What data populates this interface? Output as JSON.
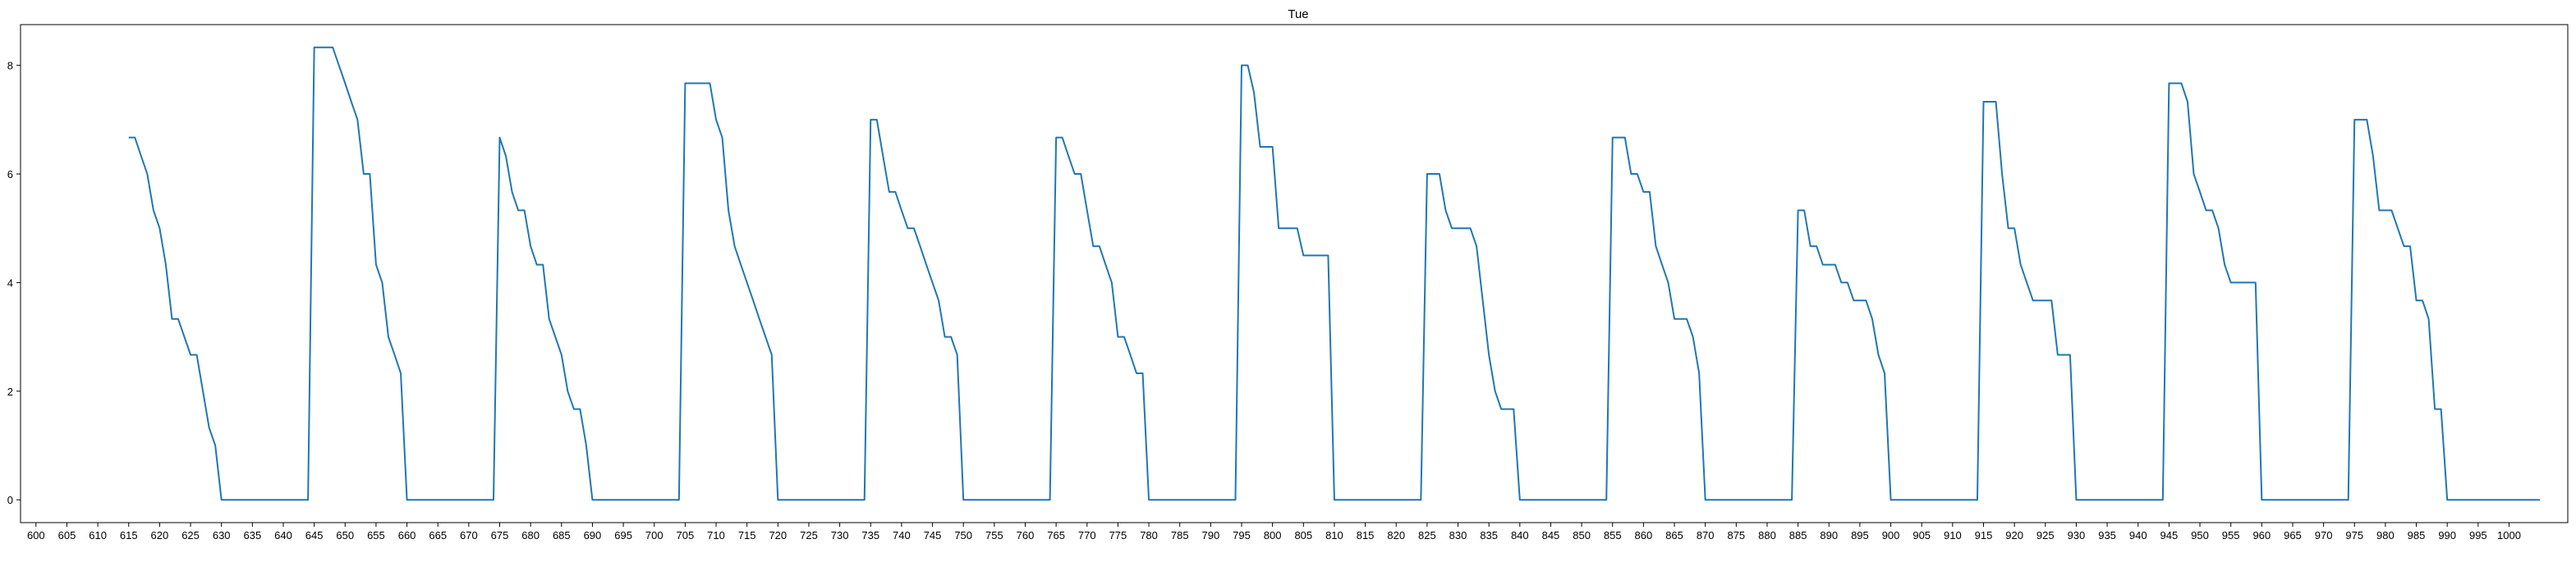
{
  "chart_data": {
    "type": "line",
    "title": "Tue",
    "xlabel": "",
    "ylabel": "",
    "xlim": [
      597.5,
      1009.5
    ],
    "ylim": [
      -0.42,
      8.75
    ],
    "x_ticks": [
      600,
      605,
      610,
      615,
      620,
      625,
      630,
      635,
      640,
      645,
      650,
      655,
      660,
      665,
      670,
      675,
      680,
      685,
      690,
      695,
      700,
      705,
      710,
      715,
      720,
      725,
      730,
      735,
      740,
      745,
      750,
      755,
      760,
      765,
      770,
      775,
      780,
      785,
      790,
      795,
      800,
      805,
      810,
      815,
      820,
      825,
      830,
      835,
      840,
      845,
      850,
      855,
      860,
      865,
      870,
      875,
      880,
      885,
      890,
      895,
      900,
      905,
      910,
      915,
      920,
      925,
      930,
      935,
      940,
      945,
      950,
      955,
      960,
      965,
      970,
      975,
      980,
      985,
      990,
      995,
      1000
    ],
    "y_ticks": [
      0,
      2,
      4,
      6,
      8
    ],
    "grid": false,
    "legend": "none",
    "series": [
      {
        "color": "#1f77b4",
        "x": [
          615,
          616,
          617,
          618,
          619,
          620,
          621,
          622,
          623,
          624,
          625,
          626,
          627,
          628,
          629,
          630,
          644,
          645,
          646,
          647,
          648,
          649,
          650,
          651,
          652,
          653,
          654,
          655,
          656,
          657,
          658,
          659,
          660,
          674,
          675,
          676,
          677,
          678,
          679,
          680,
          681,
          682,
          683,
          684,
          685,
          686,
          687,
          688,
          689,
          690,
          704,
          705,
          706,
          707,
          708,
          709,
          710,
          711,
          712,
          713,
          714,
          715,
          716,
          717,
          718,
          719,
          720,
          734,
          735,
          736,
          737,
          738,
          739,
          740,
          741,
          742,
          743,
          744,
          745,
          746,
          747,
          748,
          749,
          750,
          764,
          765,
          766,
          767,
          768,
          769,
          770,
          771,
          772,
          773,
          774,
          775,
          776,
          777,
          778,
          779,
          780,
          794,
          795,
          796,
          797,
          798,
          799,
          800,
          801,
          802,
          803,
          804,
          805,
          806,
          807,
          808,
          809,
          810,
          824,
          825,
          826,
          827,
          828,
          829,
          830,
          831,
          832,
          833,
          834,
          835,
          836,
          837,
          838,
          839,
          840,
          854,
          855,
          856,
          857,
          858,
          859,
          860,
          861,
          862,
          863,
          864,
          865,
          866,
          867,
          868,
          869,
          870,
          884,
          885,
          886,
          887,
          888,
          889,
          890,
          891,
          892,
          893,
          894,
          895,
          896,
          897,
          898,
          899,
          900,
          914,
          915,
          916,
          917,
          918,
          919,
          920,
          921,
          922,
          923,
          924,
          925,
          926,
          927,
          928,
          929,
          930,
          944,
          945,
          946,
          947,
          948,
          949,
          950,
          951,
          952,
          953,
          954,
          955,
          956,
          957,
          958,
          959,
          960,
          974,
          975,
          976,
          977,
          978,
          979,
          980,
          981,
          982,
          983,
          984,
          985,
          986,
          987,
          988,
          989,
          990,
          1005
        ],
        "y": [
          6.67,
          6.67,
          6.33,
          6.0,
          5.33,
          5.0,
          4.33,
          3.33,
          3.33,
          3.0,
          2.67,
          2.67,
          2.0,
          1.33,
          1.0,
          0,
          0,
          8.33,
          8.33,
          8.33,
          8.33,
          8.0,
          7.67,
          7.33,
          7.0,
          6.0,
          6.0,
          4.33,
          4.0,
          3.0,
          2.67,
          2.33,
          0,
          0,
          6.67,
          6.33,
          5.67,
          5.33,
          5.33,
          4.67,
          4.33,
          4.33,
          3.33,
          3.0,
          2.67,
          2.0,
          1.67,
          1.67,
          1.0,
          0,
          0,
          7.67,
          7.67,
          7.67,
          7.67,
          7.67,
          7.0,
          6.67,
          5.33,
          4.67,
          4.33,
          4.0,
          3.67,
          3.33,
          3.0,
          2.67,
          0,
          0,
          7.0,
          7.0,
          6.33,
          5.67,
          5.67,
          5.33,
          5.0,
          5.0,
          4.67,
          4.33,
          4.0,
          3.67,
          3.0,
          3.0,
          2.67,
          0,
          0,
          6.67,
          6.67,
          6.33,
          6.0,
          6.0,
          5.33,
          4.67,
          4.67,
          4.33,
          4.0,
          3.0,
          3.0,
          2.67,
          2.33,
          2.33,
          0,
          0,
          8.0,
          8.0,
          7.5,
          6.5,
          6.5,
          6.5,
          5.0,
          5.0,
          5.0,
          5.0,
          4.5,
          4.5,
          4.5,
          4.5,
          4.5,
          0,
          0,
          6.0,
          6.0,
          6.0,
          5.33,
          5.0,
          5.0,
          5.0,
          5.0,
          4.67,
          3.67,
          2.67,
          2.0,
          1.67,
          1.67,
          1.67,
          0,
          0,
          6.67,
          6.67,
          6.67,
          6.0,
          6.0,
          5.67,
          5.67,
          4.67,
          4.33,
          4.0,
          3.33,
          3.33,
          3.33,
          3.0,
          2.33,
          0,
          0,
          5.33,
          5.33,
          4.67,
          4.67,
          4.33,
          4.33,
          4.33,
          4.0,
          4.0,
          3.67,
          3.67,
          3.67,
          3.33,
          2.67,
          2.33,
          0,
          0,
          7.33,
          7.33,
          7.33,
          6.0,
          5.0,
          5.0,
          4.33,
          4.0,
          3.67,
          3.67,
          3.67,
          3.67,
          2.67,
          2.67,
          2.67,
          0,
          0,
          7.67,
          7.67,
          7.67,
          7.33,
          6.0,
          5.67,
          5.33,
          5.33,
          5.0,
          4.33,
          4.0,
          4.0,
          4.0,
          4.0,
          4.0,
          0,
          0,
          7.0,
          7.0,
          7.0,
          6.33,
          5.33,
          5.33,
          5.33,
          5.0,
          4.67,
          4.67,
          3.67,
          3.67,
          3.33,
          1.67,
          1.67,
          0,
          0
        ]
      }
    ]
  }
}
